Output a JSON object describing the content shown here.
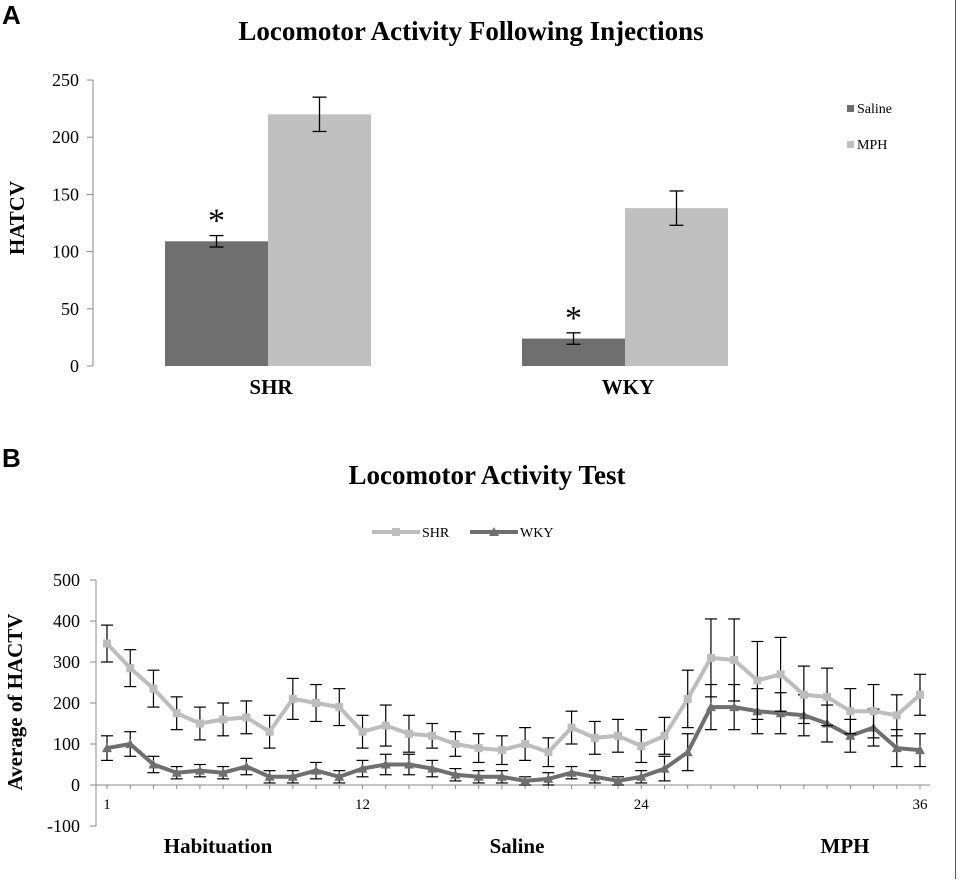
{
  "chart_data": [
    {
      "panel": "A",
      "type": "bar",
      "title": "Locomotor Activity Following Injections",
      "ylabel": "HATCV",
      "xlabel": "",
      "ylim": [
        0,
        250
      ],
      "yticks": [
        0,
        50,
        100,
        150,
        200,
        250
      ],
      "categories": [
        "SHR",
        "WKY"
      ],
      "series": [
        {
          "name": "Saline",
          "color": "#6f6f6f",
          "values": [
            109,
            24
          ],
          "errors": [
            5,
            5
          ]
        },
        {
          "name": "MPH",
          "color": "#c0c0c0",
          "values": [
            220,
            138
          ],
          "errors": [
            15,
            15
          ]
        }
      ],
      "annotations": [
        {
          "text": "*",
          "category": "SHR",
          "series": "Saline"
        },
        {
          "text": "*",
          "category": "WKY",
          "series": "Saline"
        }
      ],
      "legend": "right",
      "grid": false
    },
    {
      "panel": "B",
      "type": "line",
      "title": "Locomotor Activity Test",
      "ylabel": "Average of HACTV",
      "xlabel": "",
      "ylim": [
        -100,
        500
      ],
      "yticks": [
        -100,
        0,
        100,
        200,
        300,
        400,
        500
      ],
      "xlim": [
        1,
        36
      ],
      "xticks": [
        1,
        12,
        24,
        36
      ],
      "phases": [
        "Habituation",
        "Saline",
        "MPH"
      ],
      "x": [
        1,
        2,
        3,
        4,
        5,
        6,
        7,
        8,
        9,
        10,
        11,
        12,
        13,
        14,
        15,
        16,
        17,
        18,
        19,
        20,
        21,
        22,
        23,
        24,
        25,
        26,
        27,
        28,
        29,
        30,
        31,
        32,
        33,
        34,
        35,
        36
      ],
      "series": [
        {
          "name": "SHR",
          "color": "#bdbdbd",
          "marker": "square",
          "values": [
            345,
            285,
            235,
            175,
            150,
            160,
            165,
            130,
            210,
            200,
            190,
            130,
            145,
            125,
            120,
            100,
            90,
            85,
            100,
            80,
            140,
            115,
            120,
            95,
            120,
            210,
            310,
            305,
            255,
            270,
            220,
            215,
            180,
            180,
            170,
            220
          ],
          "errors": [
            45,
            45,
            45,
            40,
            40,
            40,
            40,
            40,
            50,
            45,
            45,
            40,
            50,
            45,
            30,
            30,
            35,
            35,
            40,
            35,
            40,
            40,
            40,
            40,
            45,
            70,
            95,
            100,
            95,
            90,
            70,
            70,
            55,
            65,
            50,
            50
          ]
        },
        {
          "name": "WKY",
          "color": "#6f6f6f",
          "marker": "triangle",
          "values": [
            90,
            100,
            50,
            30,
            35,
            30,
            45,
            20,
            20,
            35,
            20,
            40,
            50,
            50,
            40,
            25,
            20,
            20,
            10,
            15,
            30,
            20,
            10,
            20,
            40,
            80,
            190,
            190,
            180,
            175,
            170,
            150,
            120,
            140,
            90,
            85
          ],
          "errors": [
            30,
            30,
            20,
            15,
            15,
            15,
            20,
            15,
            15,
            20,
            15,
            20,
            25,
            25,
            20,
            15,
            15,
            15,
            10,
            15,
            15,
            15,
            10,
            15,
            30,
            45,
            55,
            55,
            55,
            50,
            50,
            45,
            40,
            45,
            45,
            40
          ]
        }
      ],
      "legend": "top",
      "grid": false
    }
  ],
  "labels": {
    "panel_a": "A",
    "panel_b": "B"
  }
}
